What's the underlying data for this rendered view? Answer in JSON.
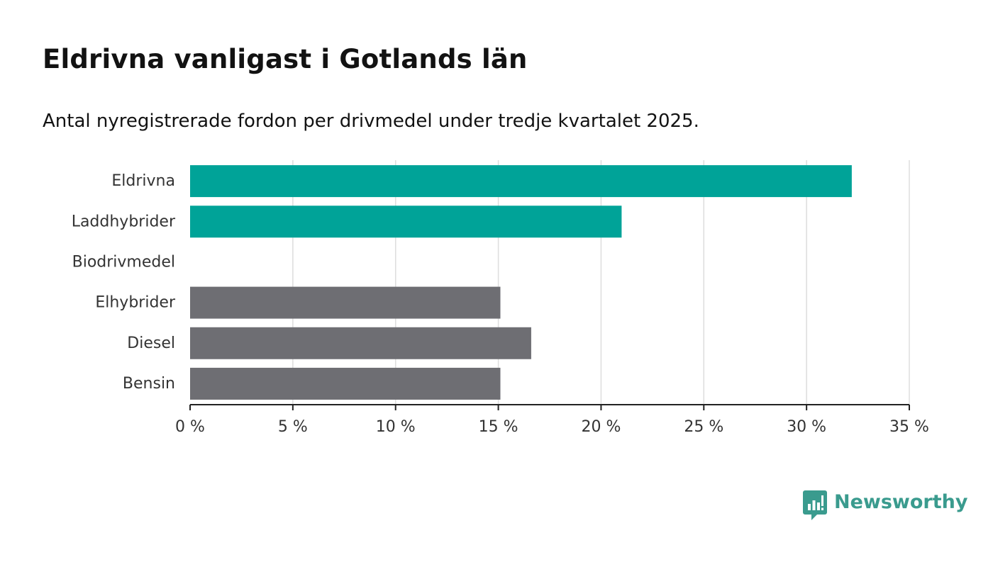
{
  "header": {
    "title": "Eldrivna vanligast i Gotlands län",
    "subtitle": "Antal nyregistrerade fordon per drivmedel under tredje kvartalet 2025."
  },
  "colors": {
    "highlight": "#00a398",
    "default": "#6e6e73",
    "grid": "#dddddd",
    "axis": "#222222",
    "logo": "#3a9b8e"
  },
  "chart_data": {
    "type": "bar",
    "orientation": "horizontal",
    "title": "Eldrivna vanligast i Gotlands län",
    "subtitle": "Antal nyregistrerade fordon per drivmedel under tredje kvartalet 2025.",
    "xlabel": "",
    "ylabel": "",
    "categories": [
      "Eldrivna",
      "Laddhybrider",
      "Biodrivmedel",
      "Elhybrider",
      "Diesel",
      "Bensin"
    ],
    "values": [
      32.2,
      21.0,
      0,
      15.1,
      16.6,
      15.1
    ],
    "highlight": [
      true,
      true,
      false,
      false,
      false,
      false
    ],
    "xlim": [
      0,
      35
    ],
    "ticks": [
      0,
      5,
      10,
      15,
      20,
      25,
      30,
      35
    ],
    "tick_labels": [
      "0 %",
      "5 %",
      "10 %",
      "15 %",
      "20 %",
      "25 %",
      "30 %",
      "35 %"
    ],
    "grid": true
  },
  "branding": {
    "logo_text": "Newsworthy",
    "logo_icon": "newsworthy-bar-chart-icon"
  }
}
